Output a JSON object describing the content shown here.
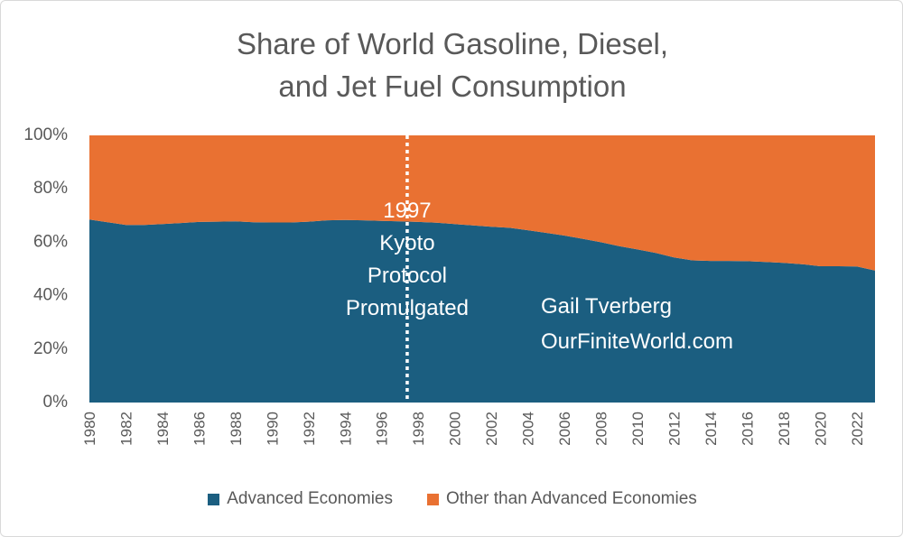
{
  "chart_data": {
    "type": "area",
    "stacked": true,
    "percent": true,
    "title_lines": [
      "Share of World Gasoline, Diesel,",
      "and Jet Fuel Consumption"
    ],
    "x": [
      1980,
      1981,
      1982,
      1983,
      1984,
      1985,
      1986,
      1987,
      1988,
      1989,
      1990,
      1991,
      1992,
      1993,
      1994,
      1995,
      1996,
      1997,
      1998,
      1999,
      2000,
      2001,
      2002,
      2003,
      2004,
      2005,
      2006,
      2007,
      2008,
      2009,
      2010,
      2011,
      2012,
      2013,
      2014,
      2015,
      2016,
      2017,
      2018,
      2019,
      2020,
      2021,
      2022,
      2023
    ],
    "xlim": [
      1980,
      2023
    ],
    "x_tick_labels": [
      "1980",
      "1982",
      "1984",
      "1986",
      "1988",
      "1990",
      "1992",
      "1994",
      "1996",
      "1998",
      "2000",
      "2002",
      "2004",
      "2006",
      "2008",
      "2010",
      "2012",
      "2014",
      "2016",
      "2018",
      "2020",
      "2022"
    ],
    "y_tick_labels": [
      "0%",
      "20%",
      "40%",
      "60%",
      "80%",
      "100%"
    ],
    "ylim": [
      0,
      100
    ],
    "grid": false,
    "legend_position": "bottom",
    "series": [
      {
        "name": "Advanced Economies",
        "color": "#1b5e80",
        "values": [
          68.5,
          67.5,
          66.5,
          66.5,
          66.8,
          67.2,
          67.6,
          67.7,
          67.8,
          67.5,
          67.4,
          67.4,
          67.7,
          68.2,
          68.3,
          68.2,
          68.0,
          67.8,
          67.6,
          67.3,
          66.8,
          66.3,
          65.8,
          65.4,
          64.5,
          63.5,
          62.5,
          61.3,
          60.0,
          58.5,
          57.3,
          56.0,
          54.3,
          53.2,
          53.0,
          53.0,
          52.9,
          52.6,
          52.3,
          51.8,
          51.0,
          51.0,
          50.9,
          49.4
        ]
      },
      {
        "name": "Other than Advanced Economies",
        "color": "#e97132",
        "values": [
          31.5,
          32.5,
          33.5,
          33.5,
          33.2,
          32.8,
          32.4,
          32.3,
          32.2,
          32.5,
          32.6,
          32.6,
          32.3,
          31.8,
          31.7,
          31.8,
          32.0,
          32.2,
          32.4,
          32.7,
          33.2,
          33.7,
          34.2,
          34.6,
          35.5,
          36.5,
          37.5,
          38.7,
          40.0,
          41.5,
          42.7,
          44.0,
          45.7,
          46.8,
          47.0,
          47.0,
          47.1,
          47.4,
          47.7,
          48.2,
          49.0,
          49.0,
          49.1,
          50.6
        ]
      }
    ],
    "annotations": {
      "event_year": 1997,
      "event_lines": [
        "1997",
        "Kyoto",
        "Protocol",
        "Promulgated"
      ],
      "credit_lines": [
        "Gail Tverberg",
        "OurFiniteWorld.com"
      ]
    }
  }
}
